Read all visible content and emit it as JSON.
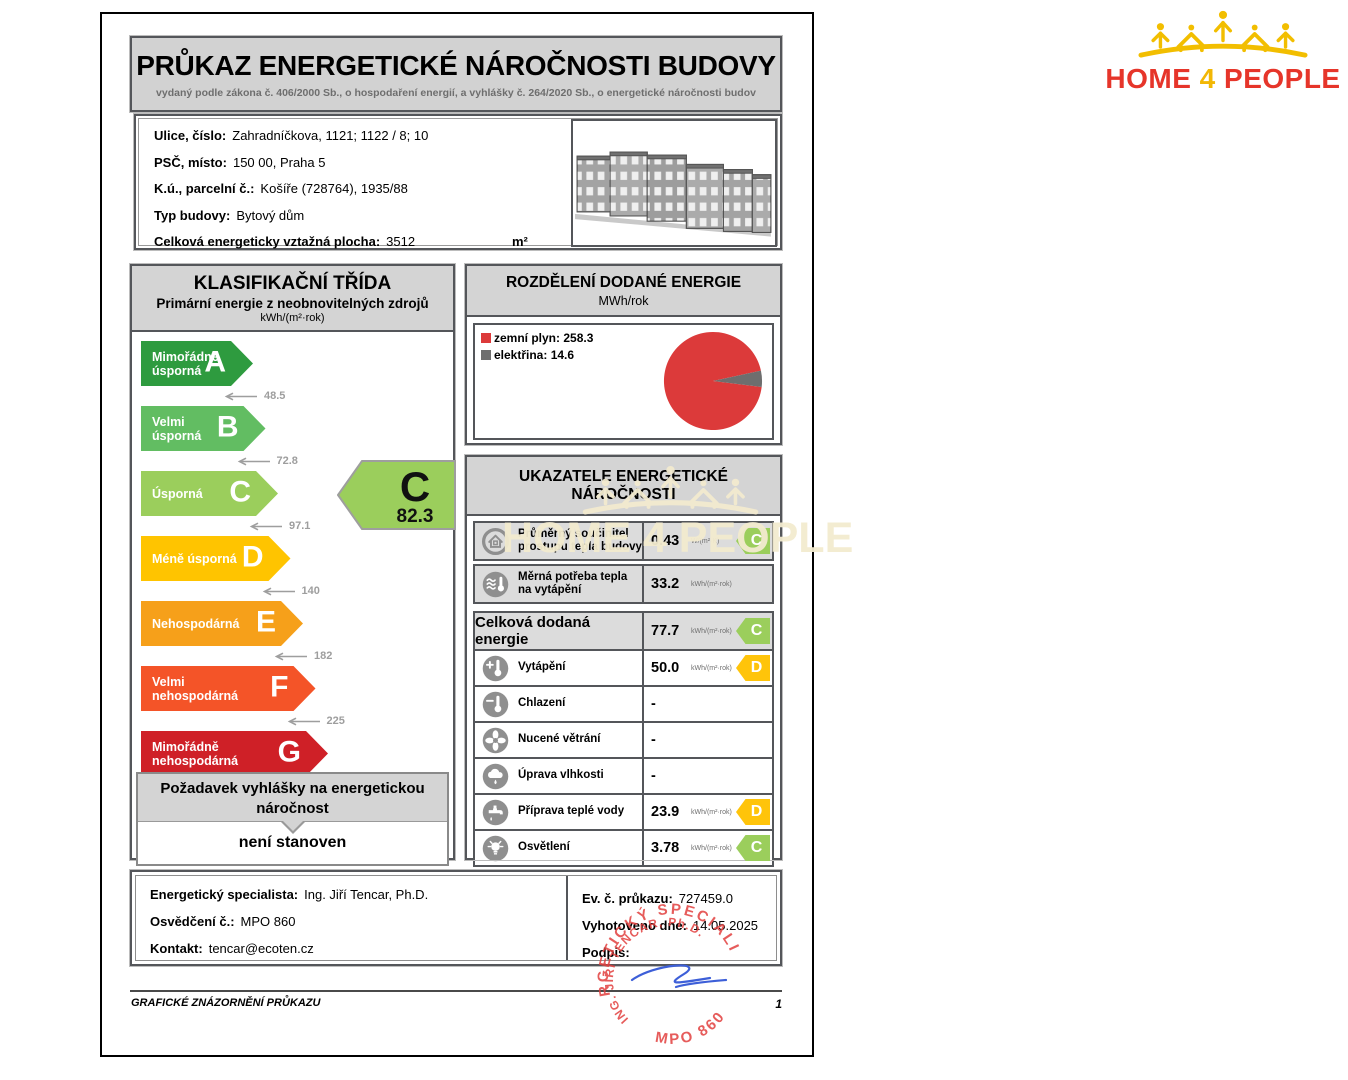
{
  "brand": {
    "home": "HOME",
    "four": "4",
    "people": "PEOPLE"
  },
  "watermark": {
    "text": "HOME 4 PEOPLE"
  },
  "header": {
    "title": "PRŮKAZ ENERGETICKÉ NÁROČNOSTI BUDOVY",
    "subtitle": "vydaný podle zákona č. 406/2000 Sb., o hospodaření energií, a vyhlášky č. 264/2020 Sb., o energetické náročnosti budov"
  },
  "building_info": {
    "rows": [
      {
        "label": "Ulice, číslo:",
        "value": "Zahradníčkova, 1121; 1122 / 8; 10"
      },
      {
        "label": "PSČ, místo:",
        "value": "150 00, Praha 5"
      },
      {
        "label": "K.ú., parcelní č.:",
        "value": "Košíře (728764), 1935/88"
      },
      {
        "label": "Typ budovy:",
        "value": "Bytový dům"
      },
      {
        "label": "Celková energeticky vztažná plocha:",
        "value": "3512",
        "unit": "m²"
      }
    ]
  },
  "classification": {
    "title": "KLASIFIKAČNÍ TŘÍDA",
    "subtitle": "Primární energie z neobnovitelných zdrojů",
    "unit": "kWh/(m²·rok)",
    "classes": [
      {
        "letter": "A",
        "label": "Mimořádně\núsporná",
        "color": "#2E9B3F",
        "threshold": "48.5"
      },
      {
        "letter": "B",
        "label": "Velmi\núsporná",
        "color": "#62BD62",
        "threshold": "72.8"
      },
      {
        "letter": "C",
        "label": "Úsporná",
        "color": "#9BCE5C",
        "threshold": "97.1"
      },
      {
        "letter": "D",
        "label": "Méně úsporná",
        "color": "#FFC400",
        "threshold": "140"
      },
      {
        "letter": "E",
        "label": "Nehospodárná",
        "color": "#F6A01A",
        "threshold": "182"
      },
      {
        "letter": "F",
        "label": "Velmi\nnehospodárná",
        "color": "#F45428",
        "threshold": "225"
      },
      {
        "letter": "G",
        "label": "Mimořádně\nnehospodárná",
        "color": "#CF2027",
        "threshold": null
      }
    ],
    "result": {
      "letter": "C",
      "value": "82.3",
      "color": "#9BCE5C"
    },
    "requirement": {
      "title": "Požadavek vyhlášky na energetickou náročnost",
      "value": "není stanoven"
    }
  },
  "chart_data": {
    "type": "pie",
    "title": "ROZDĚLENÍ DODANÉ ENERGIE",
    "unit": "MWh/rok",
    "slices": [
      {
        "label": "zemní plyn",
        "value": 258.3,
        "color": "#DC3A3A"
      },
      {
        "label": "elektřina",
        "value": 14.6,
        "color": "#6E6E6E"
      }
    ],
    "legend_position": "top-left"
  },
  "indicators": {
    "title": "UKAZATELE ENERGETICKÉ NÁROČNOSTI",
    "class_colors": {
      "C": "#9BCE5C",
      "D": "#FFC40A"
    },
    "rows": [
      {
        "icon": "house-icon",
        "label": "Průměrný součinitel\nprostupu tepla budovy",
        "value": "0.43",
        "unit": "W/(m²·K)",
        "class": "C"
      },
      {
        "icon": "heat-demand-icon",
        "label": "Měrná potřeba tepla\nna vytápění",
        "value": "33.2",
        "unit": "kWh/(m²·rok)",
        "class": null
      },
      {
        "icon": null,
        "label": "Celková dodaná energie",
        "value": "77.7",
        "unit": "kWh/(m²·rok)",
        "class": "C"
      },
      {
        "icon": "heating-icon",
        "label": "Vytápění",
        "value": "50.0",
        "unit": "kWh/(m²·rok)",
        "class": "D"
      },
      {
        "icon": "cooling-icon",
        "label": "Chlazení",
        "value": "-",
        "unit": null,
        "class": null
      },
      {
        "icon": "ventilation-icon",
        "label": "Nucené větrání",
        "value": "-",
        "unit": null,
        "class": null
      },
      {
        "icon": "humidity-icon",
        "label": "Úprava vlhkosti",
        "value": "-",
        "unit": null,
        "class": null
      },
      {
        "icon": "hot-water-icon",
        "label": "Příprava teplé vody",
        "value": "23.9",
        "unit": "kWh/(m²·rok)",
        "class": "D"
      },
      {
        "icon": "lighting-icon",
        "label": "Osvětlení",
        "value": "3.78",
        "unit": "kWh/(m²·rok)",
        "class": "C"
      }
    ]
  },
  "certificate_info": {
    "left": [
      {
        "label": "Energetický specialista:",
        "value": "Ing. Jiří Tencar, Ph.D."
      },
      {
        "label": "Osvědčení č.:",
        "value": "MPO 860"
      },
      {
        "label": "Kontakt:",
        "value": "tencar@ecoten.cz"
      }
    ],
    "right": [
      {
        "label": "Ev. č. průkazu:",
        "value": "727459.0"
      },
      {
        "label": "Vyhotoveno dne:",
        "value": "14.05.2025"
      },
      {
        "label": "Podpis:",
        "value": ""
      }
    ]
  },
  "stamp": {
    "ring_top": "ENERGETICKÝ SPECIALISTA",
    "ring_bottom": "MPO 860",
    "inner": "ING. JIŘÍ TENCAR, Ph.D."
  },
  "footer": {
    "label": "GRAFICKÉ ZNÁZORNĚNÍ PRŮKAZU",
    "page": "1"
  }
}
